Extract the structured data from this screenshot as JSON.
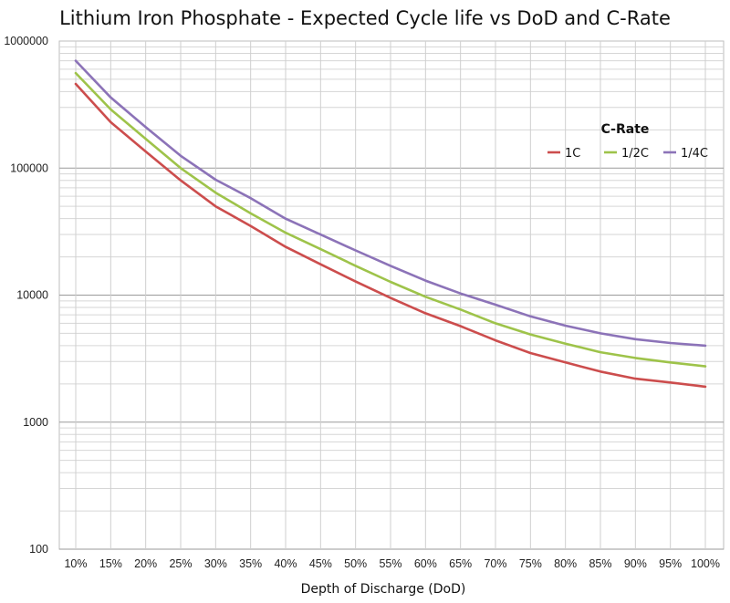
{
  "chart_data": {
    "type": "line",
    "title": "Lithium Iron Phosphate - Expected Cycle life vs DoD and C-Rate",
    "xlabel": "Depth of Discharge (DoD)",
    "ylabel": "",
    "y_scale": "log",
    "ylim": [
      100,
      1000000
    ],
    "y_ticks": [
      "100",
      "1000",
      "10000",
      "100000",
      "1000000"
    ],
    "categories": [
      "10%",
      "15%",
      "20%",
      "25%",
      "30%",
      "35%",
      "40%",
      "45%",
      "50%",
      "55%",
      "60%",
      "65%",
      "70%",
      "75%",
      "80%",
      "85%",
      "90%",
      "95%",
      "100%"
    ],
    "legend": {
      "title": "C-Rate",
      "position": "top-right"
    },
    "grid": true,
    "series": [
      {
        "name": "1C",
        "color": "#cc4d4d",
        "values": [
          460000,
          230000,
          135000,
          80000,
          50000,
          35000,
          24000,
          17500,
          12800,
          9500,
          7200,
          5700,
          4400,
          3500,
          2950,
          2500,
          2200,
          2050,
          1900
        ]
      },
      {
        "name": "1/2C",
        "color": "#9ec34a",
        "values": [
          560000,
          290000,
          170000,
          100000,
          64000,
          44000,
          31000,
          23000,
          17000,
          12700,
          9700,
          7700,
          6000,
          4900,
          4150,
          3550,
          3200,
          2950,
          2750
        ]
      },
      {
        "name": "1/4C",
        "color": "#8c73b8",
        "values": [
          700000,
          360000,
          210000,
          125000,
          81000,
          58000,
          40000,
          30000,
          22500,
          17000,
          13000,
          10300,
          8400,
          6800,
          5750,
          5000,
          4500,
          4200,
          4000
        ]
      }
    ]
  }
}
